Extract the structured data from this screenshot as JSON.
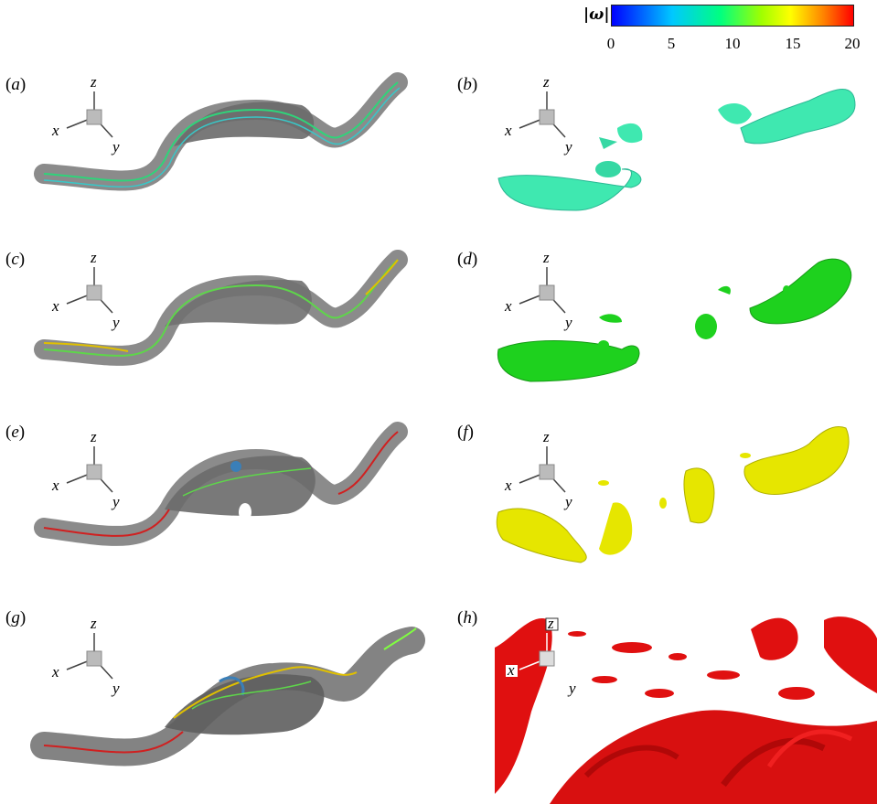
{
  "colorbar": {
    "symbol": "|ω|",
    "ticks": [
      "0",
      "5",
      "10",
      "15",
      "20"
    ],
    "gradient": [
      "#0000ff",
      "#00c8ff",
      "#00ff80",
      "#a0ff00",
      "#ffff00",
      "#ff8000",
      "#ff0000"
    ]
  },
  "panels": [
    {
      "label": "(a)",
      "letter": "a"
    },
    {
      "label": "(b)",
      "letter": "b"
    },
    {
      "label": "(c)",
      "letter": "c"
    },
    {
      "label": "(d)",
      "letter": "d"
    },
    {
      "label": "(e)",
      "letter": "e"
    },
    {
      "label": "(f)",
      "letter": "f"
    },
    {
      "label": "(g)",
      "letter": "g"
    },
    {
      "label": "(h)",
      "letter": "h"
    }
  ],
  "axes": {
    "x": "x",
    "y": "y",
    "z": "z"
  },
  "colors": {
    "tube_gray": "#8a8a8a",
    "iso_b": "#3fe8b0",
    "iso_d": "#1ed11e",
    "iso_f": "#e6e600",
    "iso_h": "#e01010"
  }
}
